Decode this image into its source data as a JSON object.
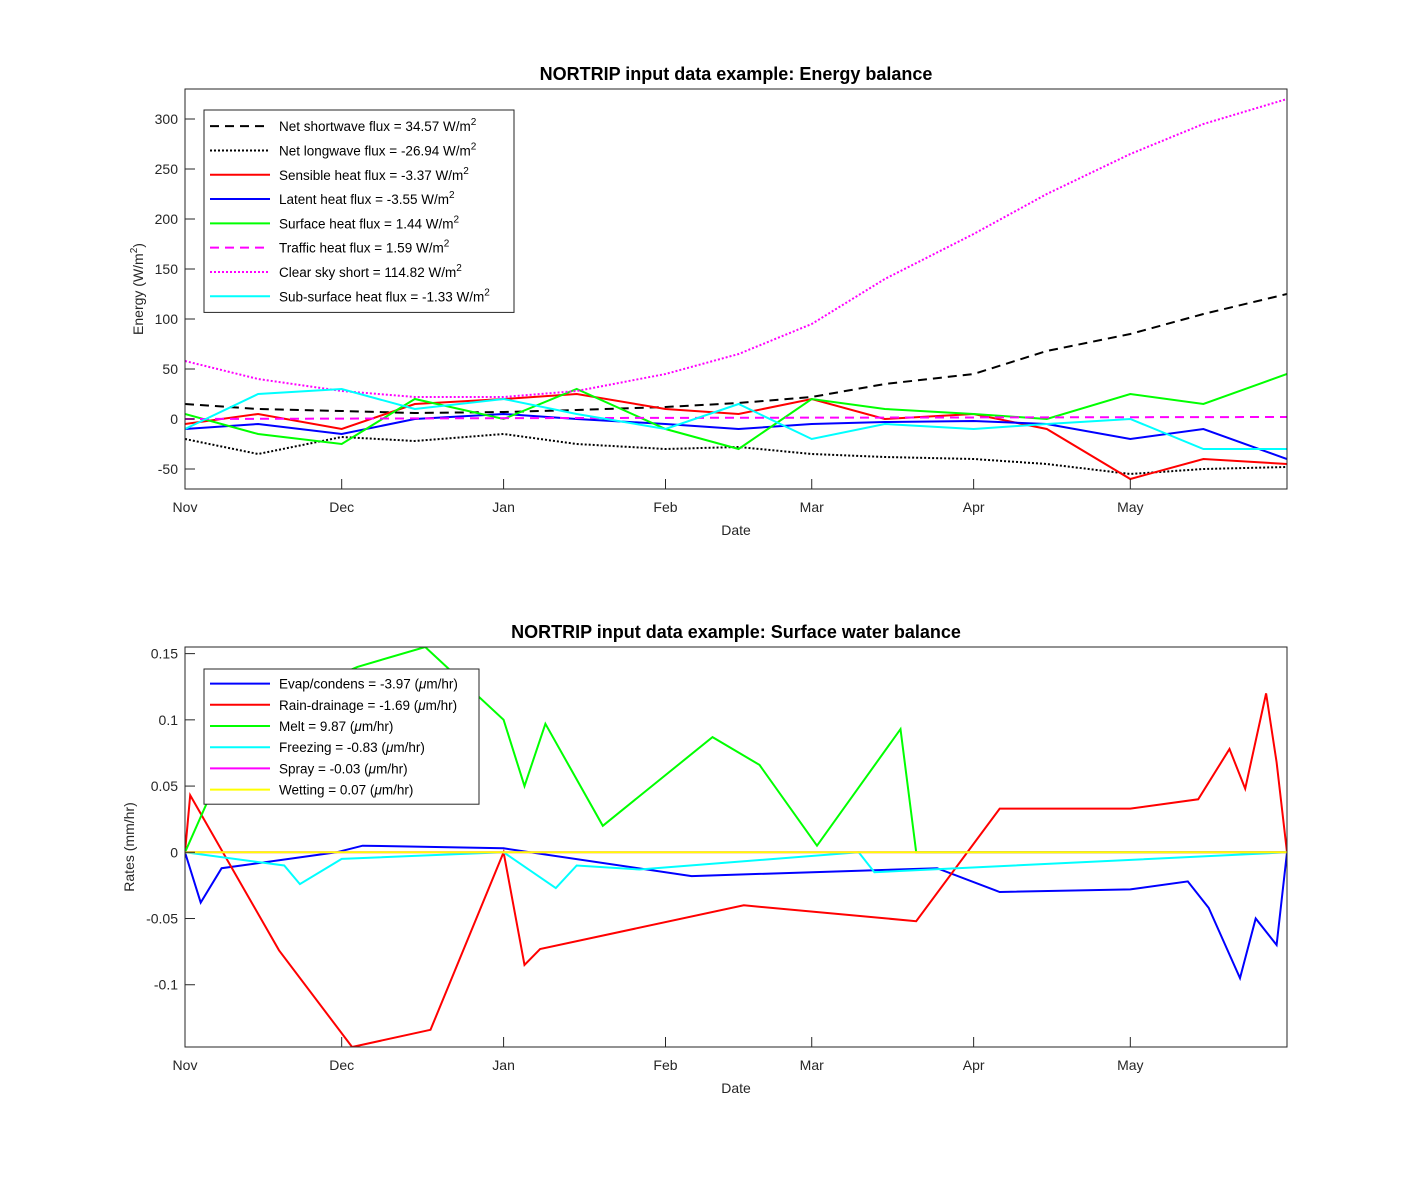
{
  "chart_data": [
    {
      "type": "line",
      "title": "NORTRIP input data example: Energy balance",
      "xlabel": "Date",
      "ylabel": "Energy (W/m",
      "ylabel_sup": "2",
      "ylabel_end": ")",
      "xlim": [
        "2012-11-01",
        "2013-05-31"
      ],
      "ylim": [
        -70,
        330
      ],
      "x_ticks": [
        {
          "date": "2012-11-01",
          "label": "Nov"
        },
        {
          "date": "2012-12-01",
          "label": "Dec"
        },
        {
          "date": "2013-01-01",
          "label": "Jan"
        },
        {
          "date": "2013-02-01",
          "label": "Feb"
        },
        {
          "date": "2013-03-01",
          "label": "Mar"
        },
        {
          "date": "2013-04-01",
          "label": "Apr"
        },
        {
          "date": "2013-05-01",
          "label": "May"
        }
      ],
      "y_ticks": [
        300,
        250,
        200,
        150,
        100,
        50,
        0,
        -50
      ],
      "y_tick_labels": [
        "300",
        "250",
        "200",
        "150",
        "100",
        "50",
        "0",
        "-50"
      ],
      "grid": false,
      "legend_position": "top-left",
      "series": [
        {
          "name": "Net shortwave flux = 34.57 W/m",
          "name_sup": "2",
          "color": "#000000",
          "style": "dashed",
          "x": [
            "2012-11-01",
            "2012-11-15",
            "2012-12-01",
            "2012-12-15",
            "2013-01-01",
            "2013-01-15",
            "2013-02-01",
            "2013-02-15",
            "2013-03-01",
            "2013-03-15",
            "2013-04-01",
            "2013-04-15",
            "2013-05-01",
            "2013-05-15",
            "2013-05-31"
          ],
          "y": [
            15,
            10,
            8,
            6,
            7,
            9,
            12,
            16,
            22,
            35,
            45,
            68,
            85,
            105,
            125
          ]
        },
        {
          "name": "Net longwave flux = -26.94 W/m",
          "name_sup": "2",
          "color": "#000000",
          "style": "dotted",
          "x": [
            "2012-11-01",
            "2012-11-15",
            "2012-12-01",
            "2012-12-15",
            "2013-01-01",
            "2013-01-15",
            "2013-02-01",
            "2013-02-15",
            "2013-03-01",
            "2013-03-15",
            "2013-04-01",
            "2013-04-15",
            "2013-05-01",
            "2013-05-15",
            "2013-05-31"
          ],
          "y": [
            -20,
            -35,
            -18,
            -22,
            -15,
            -25,
            -30,
            -28,
            -35,
            -38,
            -40,
            -45,
            -55,
            -50,
            -48
          ]
        },
        {
          "name": "Sensible heat flux = -3.37 W/m",
          "name_sup": "2",
          "color": "#ff0000",
          "style": "solid",
          "x": [
            "2012-11-01",
            "2012-11-15",
            "2012-12-01",
            "2012-12-15",
            "2013-01-01",
            "2013-01-15",
            "2013-02-01",
            "2013-02-15",
            "2013-03-01",
            "2013-03-15",
            "2013-04-01",
            "2013-04-15",
            "2013-05-01",
            "2013-05-15",
            "2013-05-31"
          ],
          "y": [
            -5,
            5,
            -10,
            15,
            20,
            25,
            10,
            5,
            20,
            0,
            5,
            -10,
            -60,
            -40,
            -45
          ]
        },
        {
          "name": "Latent heat flux = -3.55 W/m",
          "name_sup": "2",
          "color": "#0000ff",
          "style": "solid",
          "x": [
            "2012-11-01",
            "2012-11-15",
            "2012-12-01",
            "2012-12-15",
            "2013-01-01",
            "2013-01-15",
            "2013-02-01",
            "2013-02-15",
            "2013-03-01",
            "2013-03-15",
            "2013-04-01",
            "2013-04-15",
            "2013-05-01",
            "2013-05-15",
            "2013-05-31"
          ],
          "y": [
            -10,
            -5,
            -15,
            0,
            5,
            0,
            -5,
            -10,
            -5,
            -3,
            -2,
            -5,
            -20,
            -10,
            -40
          ]
        },
        {
          "name": "Surface heat flux = 1.44 W/m",
          "name_sup": "2",
          "color": "#00ff00",
          "style": "solid",
          "x": [
            "2012-11-01",
            "2012-11-15",
            "2012-12-01",
            "2012-12-15",
            "2013-01-01",
            "2013-01-15",
            "2013-02-01",
            "2013-02-15",
            "2013-03-01",
            "2013-03-15",
            "2013-04-01",
            "2013-04-15",
            "2013-05-01",
            "2013-05-15",
            "2013-05-31"
          ],
          "y": [
            5,
            -15,
            -25,
            20,
            0,
            30,
            -10,
            -30,
            20,
            10,
            5,
            0,
            25,
            15,
            45
          ]
        },
        {
          "name": "Traffic heat flux = 1.59 W/m",
          "name_sup": "2",
          "color": "#ff00ff",
          "style": "dashed",
          "x": [
            "2012-11-01",
            "2013-01-15",
            "2013-05-31"
          ],
          "y": [
            0,
            1,
            2
          ]
        },
        {
          "name": "Clear sky short = 114.82 W/m",
          "name_sup": "2",
          "color": "#ff00ff",
          "style": "dotted",
          "x": [
            "2012-11-01",
            "2012-11-15",
            "2012-12-01",
            "2012-12-15",
            "2013-01-01",
            "2013-01-15",
            "2013-02-01",
            "2013-02-15",
            "2013-03-01",
            "2013-03-15",
            "2013-04-01",
            "2013-04-15",
            "2013-05-01",
            "2013-05-15",
            "2013-05-31"
          ],
          "y": [
            58,
            40,
            28,
            22,
            22,
            28,
            45,
            65,
            95,
            140,
            185,
            225,
            265,
            295,
            320
          ]
        },
        {
          "name": "Sub-surface heat flux = -1.33 W/m",
          "name_sup": "2",
          "color": "#00ffff",
          "style": "solid",
          "x": [
            "2012-11-01",
            "2012-11-15",
            "2012-12-01",
            "2012-12-15",
            "2013-01-01",
            "2013-01-15",
            "2013-02-01",
            "2013-02-15",
            "2013-03-01",
            "2013-03-15",
            "2013-04-01",
            "2013-04-15",
            "2013-05-01",
            "2013-05-15",
            "2013-05-31"
          ],
          "y": [
            -10,
            25,
            30,
            10,
            20,
            5,
            -10,
            15,
            -20,
            -5,
            -10,
            -5,
            0,
            -30,
            -30
          ]
        }
      ]
    },
    {
      "type": "line",
      "title": "NORTRIP input data example: Surface water balance",
      "xlabel": "Date",
      "ylabel": "Rates (mm/hr)",
      "xlim": [
        "2012-11-01",
        "2013-05-31"
      ],
      "ylim": [
        -0.147,
        0.155
      ],
      "x_ticks": [
        {
          "date": "2012-11-01",
          "label": "Nov"
        },
        {
          "date": "2012-12-01",
          "label": "Dec"
        },
        {
          "date": "2013-01-01",
          "label": "Jan"
        },
        {
          "date": "2013-02-01",
          "label": "Feb"
        },
        {
          "date": "2013-03-01",
          "label": "Mar"
        },
        {
          "date": "2013-04-01",
          "label": "Apr"
        },
        {
          "date": "2013-05-01",
          "label": "May"
        }
      ],
      "y_ticks": [
        0.15,
        0.1,
        0.05,
        0,
        -0.05,
        -0.1
      ],
      "y_tick_labels": [
        "0.15",
        "0.1",
        "0.05",
        "0",
        "-0.05",
        "-0.1"
      ],
      "grid": false,
      "legend_position": "top-left",
      "series": [
        {
          "name": "Evap/condens = -3.97 (",
          "name_mu": "μ",
          "name_end": "m/hr)",
          "color": "#0000ff",
          "style": "solid",
          "x": [
            "2012-11-01",
            "2012-11-04",
            "2012-11-08",
            "2012-11-30",
            "2012-12-05",
            "2013-01-01",
            "2013-02-06",
            "2013-03-25",
            "2013-04-06",
            "2013-05-01",
            "2013-05-12",
            "2013-05-16",
            "2013-05-22",
            "2013-05-25",
            "2013-05-29",
            "2013-05-31"
          ],
          "y": [
            0,
            -0.038,
            -0.012,
            0,
            0.005,
            0.003,
            -0.018,
            -0.012,
            -0.03,
            -0.028,
            -0.022,
            -0.042,
            -0.095,
            -0.05,
            -0.07,
            0
          ]
        },
        {
          "name": "Rain-drainage = -1.69 (",
          "name_mu": "μ",
          "name_end": "m/hr)",
          "color": "#ff0000",
          "style": "solid",
          "x": [
            "2012-11-01",
            "2012-11-02",
            "2012-11-19",
            "2012-12-03",
            "2012-12-18",
            "2013-01-01",
            "2013-01-05",
            "2013-01-08",
            "2013-02-16",
            "2013-03-21",
            "2013-04-06",
            "2013-05-01",
            "2013-05-14",
            "2013-05-20",
            "2013-05-23",
            "2013-05-27",
            "2013-05-29",
            "2013-05-31"
          ],
          "y": [
            0,
            0.043,
            -0.074,
            -0.147,
            -0.134,
            0,
            -0.085,
            -0.073,
            -0.04,
            -0.052,
            0.033,
            0.033,
            0.04,
            0.078,
            0.048,
            0.12,
            0.068,
            0
          ]
        },
        {
          "name": "Melt = 9.87 (",
          "name_mu": "μ",
          "name_end": "m/hr)",
          "color": "#00ff00",
          "style": "solid",
          "x": [
            "2012-11-01",
            "2012-11-10",
            "2012-11-22",
            "2012-12-04",
            "2012-12-17",
            "2013-01-01",
            "2013-01-05",
            "2013-01-09",
            "2013-01-20",
            "2013-02-10",
            "2013-02-19",
            "2013-03-02",
            "2013-03-18",
            "2013-03-21",
            "2013-05-31"
          ],
          "y": [
            0,
            0.08,
            0.12,
            0.14,
            0.155,
            0.1,
            0.05,
            0.097,
            0.02,
            0.087,
            0.066,
            0.005,
            0.093,
            0,
            0
          ]
        },
        {
          "name": "Freezing = -0.83 (",
          "name_mu": "μ",
          "name_end": "m/hr)",
          "color": "#00ffff",
          "style": "solid",
          "x": [
            "2012-11-01",
            "2012-11-20",
            "2012-11-23",
            "2012-12-01",
            "2013-01-01",
            "2013-01-11",
            "2013-01-15",
            "2013-01-27",
            "2013-03-10",
            "2013-03-13",
            "2013-05-31"
          ],
          "y": [
            0,
            -0.01,
            -0.024,
            -0.005,
            0,
            -0.027,
            -0.01,
            -0.013,
            0,
            -0.015,
            0
          ]
        },
        {
          "name": "Spray = -0.03 (",
          "name_mu": "μ",
          "name_end": "m/hr)",
          "color": "#ff00ff",
          "style": "solid",
          "x": [
            "2012-11-01",
            "2013-05-31"
          ],
          "y": [
            0,
            0
          ]
        },
        {
          "name": "Wetting = 0.07 (",
          "name_mu": "μ",
          "name_end": "m/hr)",
          "color": "#ffff00",
          "style": "solid",
          "x": [
            "2012-11-01",
            "2013-05-31"
          ],
          "y": [
            0,
            0
          ]
        }
      ]
    }
  ]
}
